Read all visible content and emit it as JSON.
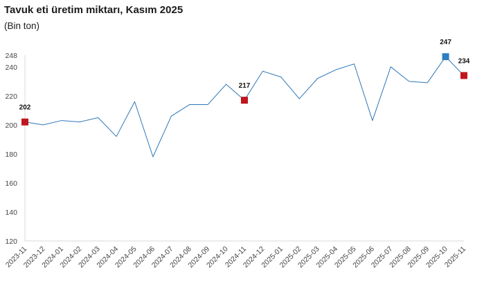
{
  "chart_data": {
    "type": "line",
    "title": "Tavuk eti üretim miktarı, Kasım 2025",
    "subtitle": "(Bin ton)",
    "xlabel": "",
    "ylabel": "",
    "ylim": [
      120,
      248
    ],
    "y_ticks": [
      120,
      140,
      160,
      180,
      200,
      220,
      240,
      248
    ],
    "grid": false,
    "categories": [
      "2023-11",
      "2023-12",
      "2024-01",
      "2024-02",
      "2024-03",
      "2024-04",
      "2024-05",
      "2024-06",
      "2024-07",
      "2024-08",
      "2024-09",
      "2024-10",
      "2024-11",
      "2024-12",
      "2025-01",
      "2025-02",
      "2025-03",
      "2025-04",
      "2025-05",
      "2025-06",
      "2025-07",
      "2025-08",
      "2025-09",
      "2025-10",
      "2025-11"
    ],
    "series": [
      {
        "values": [
          202,
          200,
          203,
          202,
          205,
          192,
          216,
          178,
          206,
          214,
          214,
          228,
          217,
          237,
          233,
          218,
          232,
          238,
          242,
          203,
          240,
          230,
          229,
          247,
          234
        ],
        "color": "#2e75b6"
      }
    ],
    "highlights": [
      {
        "index": 0,
        "label": "202",
        "color": "#c0161d"
      },
      {
        "index": 12,
        "label": "217",
        "color": "#c0161d"
      },
      {
        "index": 23,
        "label": "247",
        "color": "#2e7fc1"
      },
      {
        "index": 24,
        "label": "234",
        "color": "#c0161d"
      }
    ]
  }
}
